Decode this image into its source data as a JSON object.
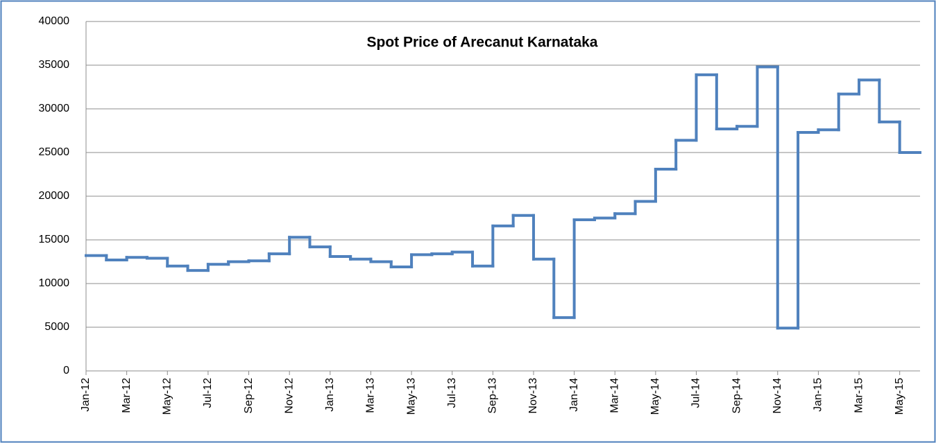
{
  "chart_data": {
    "type": "line",
    "step": true,
    "title": "Spot Price of Arecanut Karnataka",
    "categories": [
      "Jan-12",
      null,
      "Mar-12",
      null,
      "May-12",
      null,
      "Jul-12",
      null,
      "Sep-12",
      null,
      "Nov-12",
      null,
      "Jan-13",
      null,
      "Mar-13",
      null,
      "May-13",
      null,
      "Jul-13",
      null,
      "Sep-13",
      null,
      "Nov-13",
      null,
      "Jan-14",
      null,
      "Mar-14",
      null,
      "May-14",
      null,
      "Jul-14",
      null,
      "Sep-14",
      null,
      "Nov-14",
      null,
      "Jan-15",
      null,
      "Mar-15",
      null,
      "May-15"
    ],
    "series": [
      {
        "name": "Spot Price",
        "color": "#4f81bd",
        "values": [
          13200,
          12700,
          13000,
          12900,
          12000,
          11500,
          12200,
          12500,
          12600,
          13400,
          15300,
          14200,
          13100,
          12800,
          12500,
          11900,
          13300,
          13400,
          13600,
          12000,
          16600,
          17800,
          12800,
          6100,
          17300,
          17500,
          18000,
          19400,
          23100,
          26400,
          33900,
          27700,
          28000,
          34800,
          4900,
          27300,
          27600,
          31700,
          33300,
          28500,
          25000
        ]
      }
    ],
    "ylim": [
      0,
      40000
    ],
    "yticks": [
      0,
      5000,
      10000,
      15000,
      20000,
      25000,
      30000,
      35000,
      40000
    ],
    "grid": true
  }
}
